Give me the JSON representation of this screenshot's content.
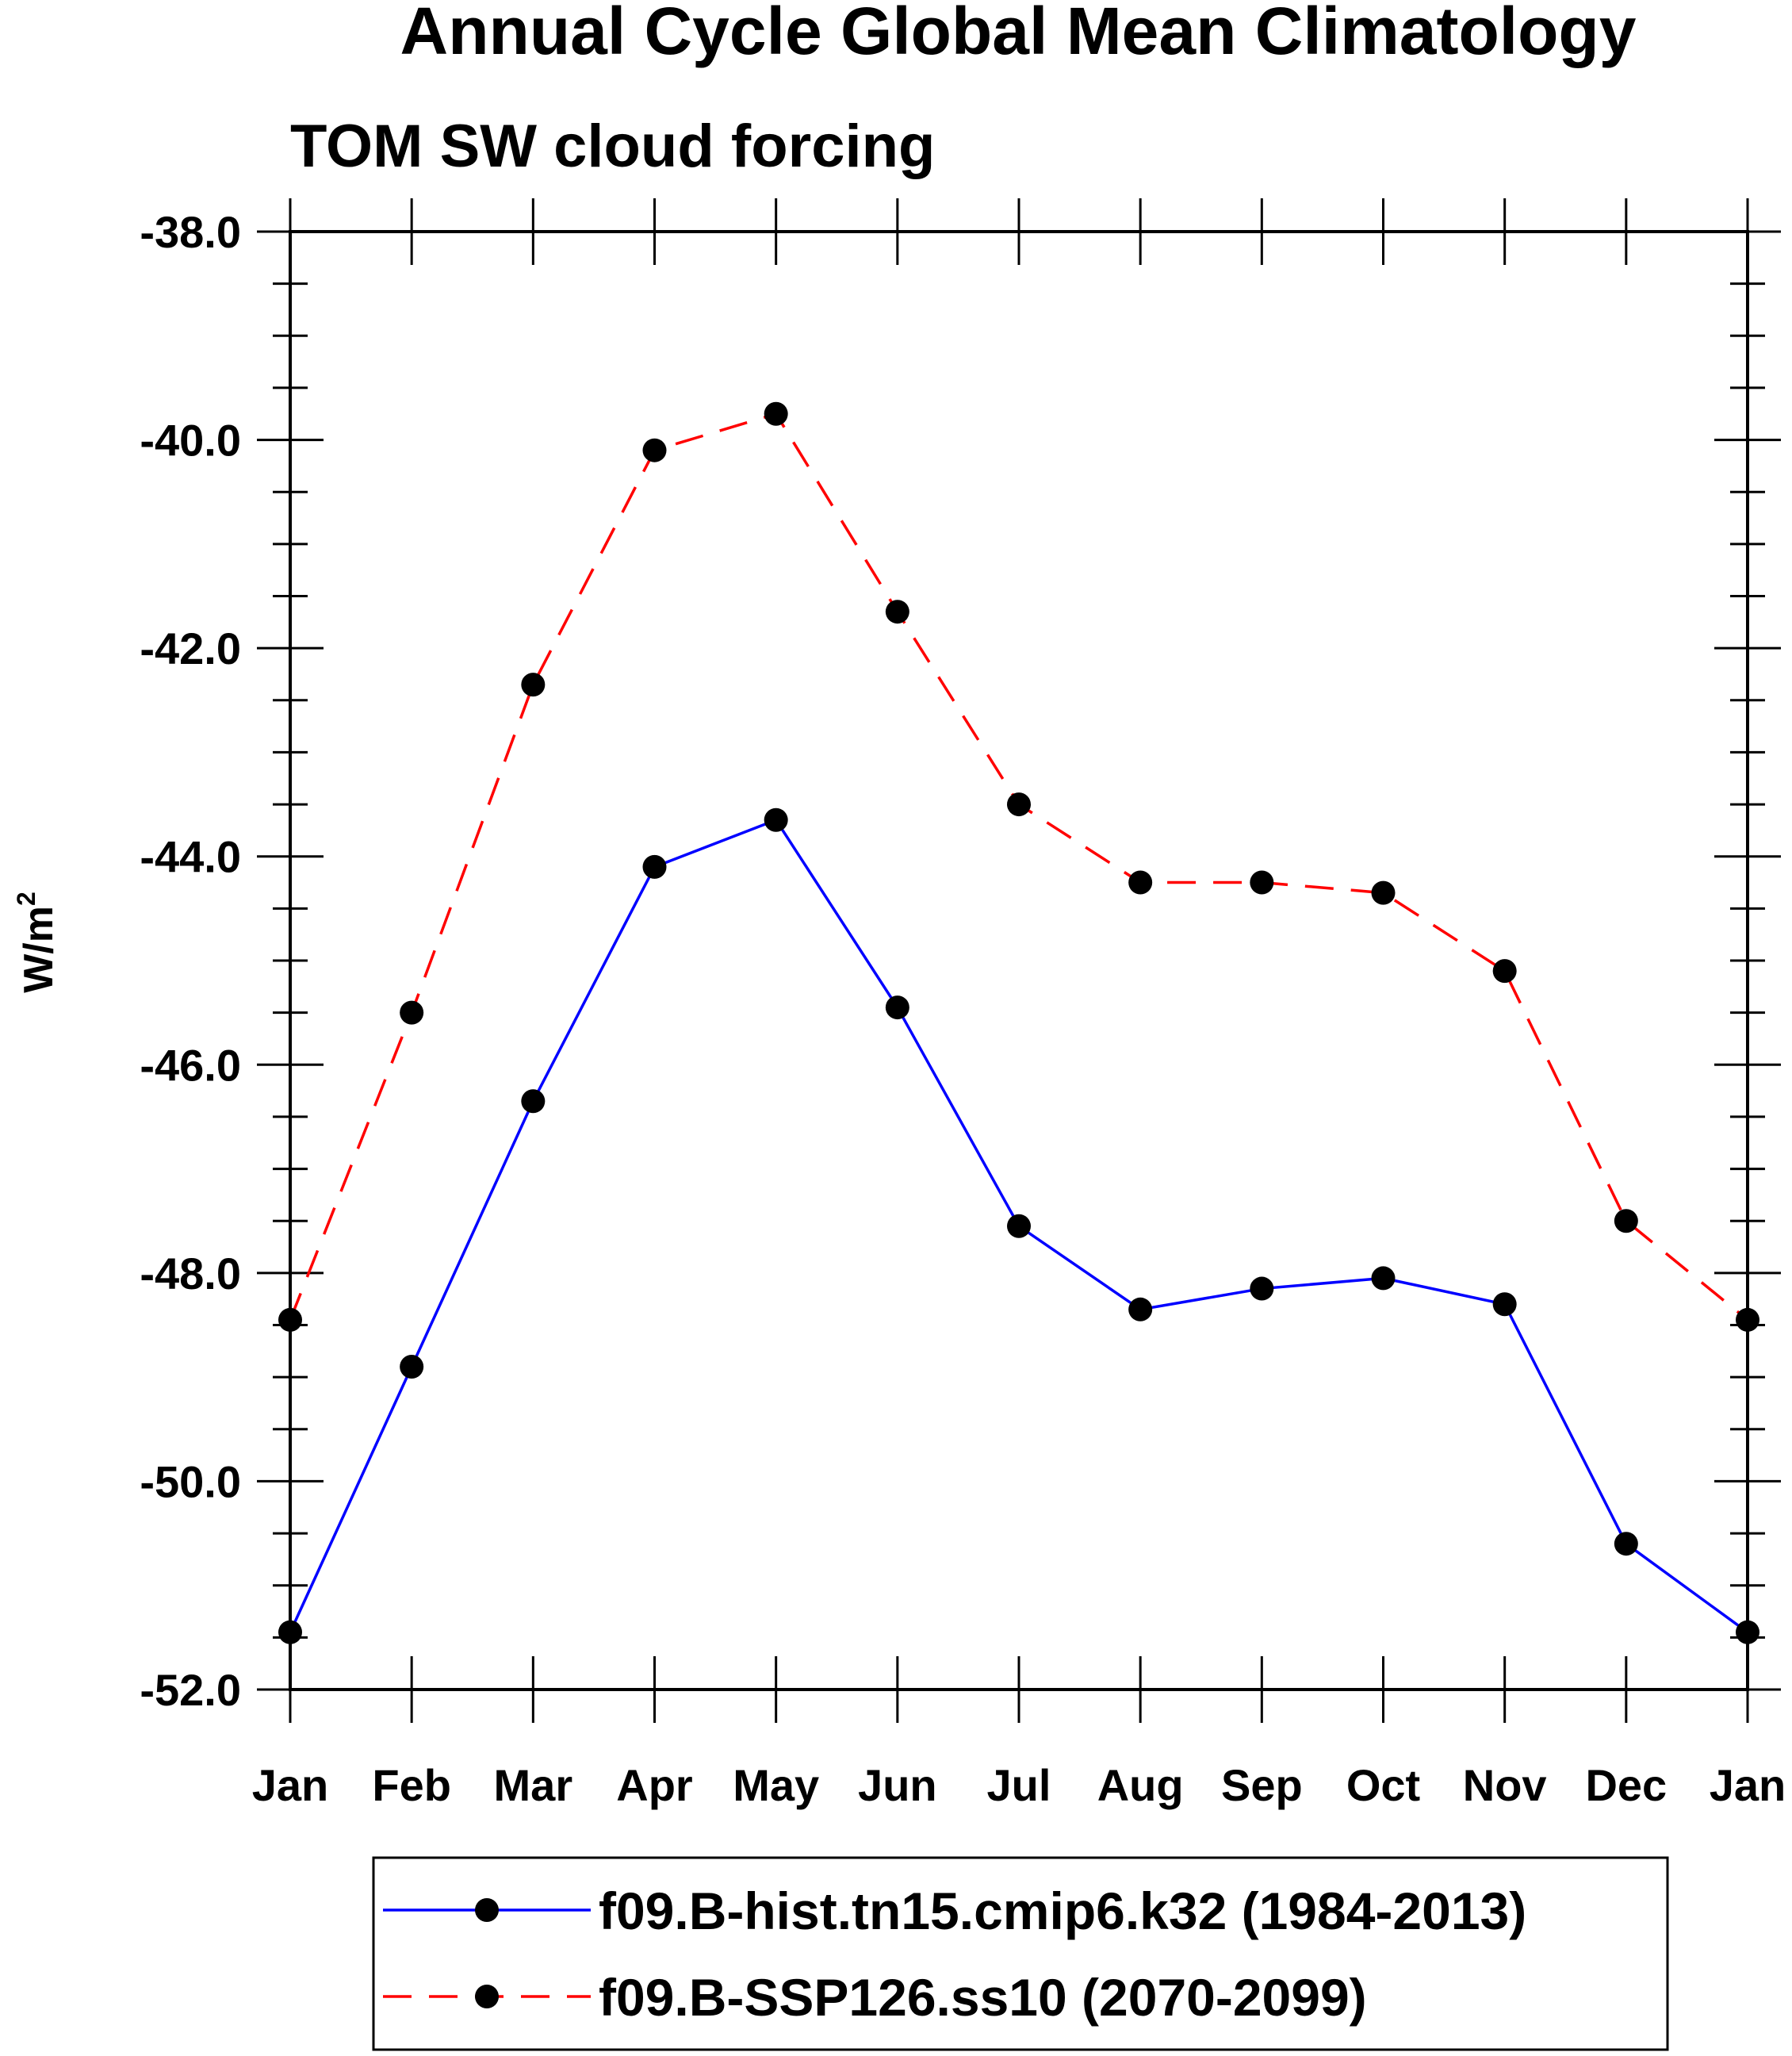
{
  "chart_data": {
    "type": "line",
    "title": "Annual Cycle Global Mean Climatology",
    "subtitle": "TOM SW cloud forcing",
    "ylabel": "W/m",
    "ylabel_superscript": "2",
    "xlabel": "",
    "categories": [
      "Jan",
      "Feb",
      "Mar",
      "Apr",
      "May",
      "Jun",
      "Jul",
      "Aug",
      "Sep",
      "Oct",
      "Nov",
      "Dec",
      "Jan"
    ],
    "ylim": [
      -52.0,
      -38.0
    ],
    "yticks": [
      -38.0,
      -40.0,
      -42.0,
      -44.0,
      -46.0,
      -48.0,
      -50.0,
      -52.0
    ],
    "ytick_labels": [
      "-38.0",
      "-40.0",
      "-42.0",
      "-44.0",
      "-46.0",
      "-48.0",
      "-50.0",
      "-52.0"
    ],
    "grid": false,
    "legend_position": "bottom",
    "series": [
      {
        "name": "f09.B-hist.tn15.cmip6.k32 (1984-2013)",
        "color": "#0000ff",
        "dash": "solid",
        "marker_color": "#000000",
        "values": [
          -51.45,
          -48.9,
          -46.35,
          -44.1,
          -43.65,
          -45.45,
          -47.55,
          -48.35,
          -48.15,
          -48.05,
          -48.3,
          -50.6,
          -51.45
        ]
      },
      {
        "name": "f09.B-SSP126.ss10 (2070-2099)",
        "color": "#ff0000",
        "dash": "dashed",
        "marker_color": "#000000",
        "values": [
          -48.45,
          -45.5,
          -42.35,
          -40.1,
          -39.75,
          -41.65,
          -43.5,
          -44.25,
          -44.25,
          -44.35,
          -45.1,
          -47.5,
          -48.45
        ]
      }
    ]
  }
}
